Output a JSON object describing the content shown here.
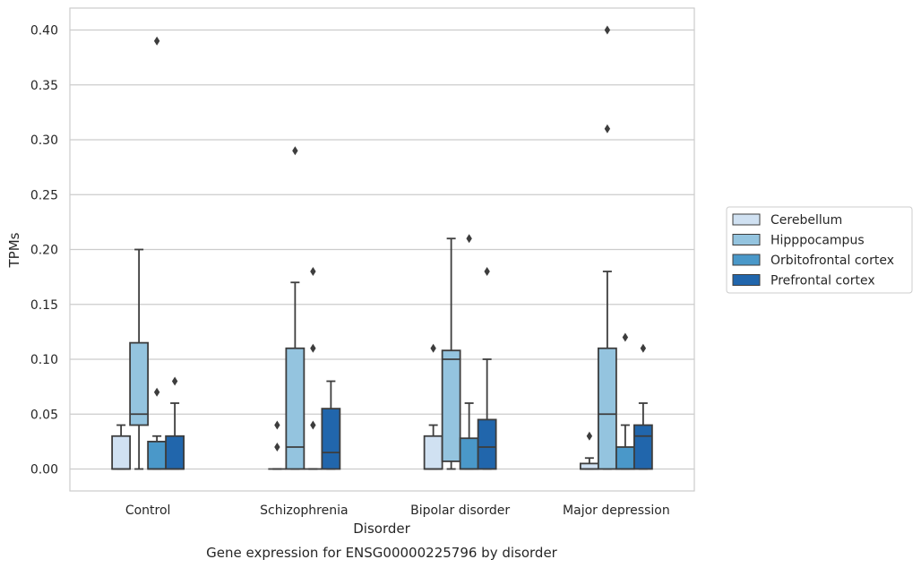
{
  "chart_data": {
    "type": "box",
    "xlabel": "Disorder",
    "ylabel": "TPMs",
    "caption": "Gene expression for ENSG00000225796 by disorder",
    "ylim": [
      -0.02,
      0.42
    ],
    "yticks": [
      0.0,
      0.05,
      0.1,
      0.15,
      0.2,
      0.25,
      0.3,
      0.35,
      0.4
    ],
    "ytick_labels": [
      "0.00",
      "0.05",
      "0.10",
      "0.15",
      "0.20",
      "0.25",
      "0.30",
      "0.35",
      "0.40"
    ],
    "grid": "horizontal",
    "legend_position": "outside-right",
    "categories": [
      "Control",
      "Schizophrenia",
      "Bipolar disorder",
      "Major depression"
    ],
    "series": [
      {
        "name": "Cerebellum",
        "color": "#d0e1f2",
        "boxes": [
          {
            "whislo": 0.0,
            "q1": 0.0,
            "med": 0.0,
            "q3": 0.03,
            "whishi": 0.04,
            "fliers": []
          },
          {
            "whislo": 0.0,
            "q1": 0.0,
            "med": 0.0,
            "q3": 0.0,
            "whishi": 0.0,
            "fliers": [
              0.02,
              0.04
            ]
          },
          {
            "whislo": 0.0,
            "q1": 0.0,
            "med": 0.0,
            "q3": 0.03,
            "whishi": 0.04,
            "fliers": [
              0.11
            ]
          },
          {
            "whislo": 0.0,
            "q1": 0.0,
            "med": 0.0,
            "q3": 0.005,
            "whishi": 0.01,
            "fliers": [
              0.03
            ]
          }
        ]
      },
      {
        "name": "Hipppocampus",
        "color": "#94c4df",
        "boxes": [
          {
            "whislo": 0.0,
            "q1": 0.04,
            "med": 0.05,
            "q3": 0.115,
            "whishi": 0.2,
            "fliers": []
          },
          {
            "whislo": 0.0,
            "q1": 0.0,
            "med": 0.02,
            "q3": 0.11,
            "whishi": 0.17,
            "fliers": [
              0.29
            ]
          },
          {
            "whislo": 0.0,
            "q1": 0.007,
            "med": 0.1,
            "q3": 0.108,
            "whishi": 0.21,
            "fliers": []
          },
          {
            "whislo": 0.0,
            "q1": 0.0,
            "med": 0.05,
            "q3": 0.11,
            "whishi": 0.18,
            "fliers": [
              0.31,
              0.4
            ]
          }
        ]
      },
      {
        "name": "Orbitofrontal cortex",
        "color": "#4a98c9",
        "boxes": [
          {
            "whislo": 0.0,
            "q1": 0.0,
            "med": 0.0,
            "q3": 0.025,
            "whishi": 0.03,
            "fliers": [
              0.07,
              0.39
            ]
          },
          {
            "whislo": 0.0,
            "q1": 0.0,
            "med": 0.0,
            "q3": 0.0,
            "whishi": 0.0,
            "fliers": [
              0.04,
              0.11,
              0.18
            ]
          },
          {
            "whislo": 0.0,
            "q1": 0.0,
            "med": 0.0,
            "q3": 0.028,
            "whishi": 0.06,
            "fliers": [
              0.21
            ]
          },
          {
            "whislo": 0.0,
            "q1": 0.0,
            "med": 0.0,
            "q3": 0.02,
            "whishi": 0.04,
            "fliers": [
              0.12
            ]
          }
        ]
      },
      {
        "name": "Prefrontal cortex",
        "color": "#2166ac",
        "boxes": [
          {
            "whislo": 0.0,
            "q1": 0.0,
            "med": 0.0,
            "q3": 0.03,
            "whishi": 0.06,
            "fliers": [
              0.08
            ]
          },
          {
            "whislo": 0.0,
            "q1": 0.0,
            "med": 0.015,
            "q3": 0.055,
            "whishi": 0.08,
            "fliers": []
          },
          {
            "whislo": 0.0,
            "q1": 0.0,
            "med": 0.02,
            "q3": 0.045,
            "whishi": 0.1,
            "fliers": [
              0.18
            ]
          },
          {
            "whislo": 0.0,
            "q1": 0.0,
            "med": 0.03,
            "q3": 0.04,
            "whishi": 0.06,
            "fliers": [
              0.11
            ]
          }
        ]
      }
    ]
  }
}
